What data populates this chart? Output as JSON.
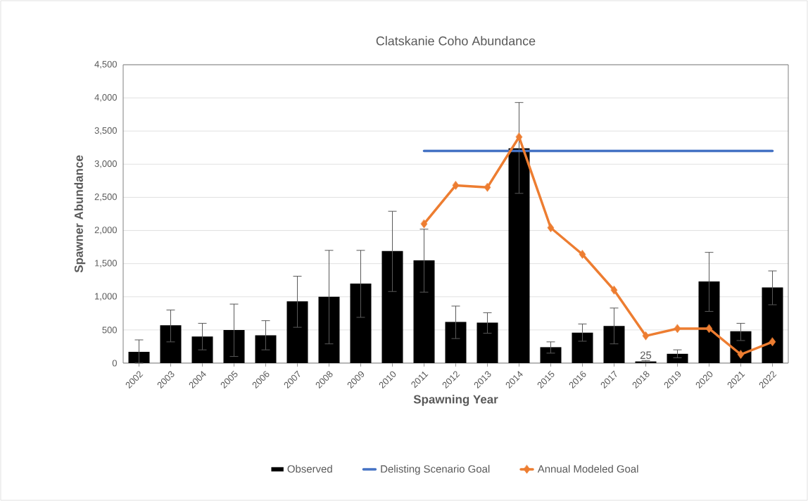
{
  "chart_data": {
    "type": "bar",
    "title": "Clatskanie Coho Abundance",
    "xlabel": "Spawning Year",
    "ylabel": "Spawner Abundance",
    "categories": [
      "2002",
      "2003",
      "2004",
      "2005",
      "2006",
      "2007",
      "2008",
      "2009",
      "2010",
      "2011",
      "2012",
      "2013",
      "2014",
      "2015",
      "2016",
      "2017",
      "2018",
      "2019",
      "2020",
      "2021",
      "2022"
    ],
    "series": [
      {
        "name": "Observed",
        "color": "#000000",
        "values": [
          170,
          570,
          400,
          500,
          420,
          930,
          1000,
          1200,
          1690,
          1550,
          620,
          610,
          3240,
          240,
          460,
          560,
          25,
          140,
          1230,
          480,
          1140
        ],
        "errors": [
          [
            0,
            350
          ],
          [
            320,
            800
          ],
          [
            200,
            600
          ],
          [
            100,
            890
          ],
          [
            200,
            640
          ],
          [
            540,
            1310
          ],
          [
            290,
            1700
          ],
          [
            690,
            1700
          ],
          [
            1080,
            2290
          ],
          [
            1070,
            2020
          ],
          [
            370,
            860
          ],
          [
            450,
            760
          ],
          [
            2560,
            3930
          ],
          [
            150,
            320
          ],
          [
            330,
            590
          ],
          [
            290,
            830
          ],
          [
            20,
            40
          ],
          [
            80,
            200
          ],
          [
            780,
            1670
          ],
          [
            340,
            600
          ],
          [
            880,
            1390
          ]
        ],
        "value_labels": [
          null,
          null,
          null,
          null,
          null,
          null,
          null,
          null,
          null,
          null,
          null,
          null,
          null,
          null,
          null,
          null,
          "25",
          null,
          null,
          null,
          null
        ]
      },
      {
        "name": "Delisting Scenario Goal",
        "type": "line",
        "color": "#4472c4",
        "marker": "none",
        "values": [
          null,
          null,
          null,
          null,
          null,
          null,
          null,
          null,
          null,
          3200,
          3200,
          3200,
          3200,
          3200,
          3200,
          3200,
          3200,
          3200,
          3200,
          3200,
          3200
        ]
      },
      {
        "name": "Annual Modeled Goal",
        "type": "line",
        "color": "#ed7d31",
        "marker": "diamond",
        "values": [
          null,
          null,
          null,
          null,
          null,
          null,
          null,
          null,
          null,
          2100,
          2680,
          2650,
          3410,
          2040,
          1640,
          1100,
          410,
          520,
          520,
          130,
          320
        ]
      }
    ],
    "ylim": [
      0,
      4500
    ],
    "yticks": [
      0,
      {
        "value": 500,
        "label": "500"
      },
      {
        "value": 1000,
        "label": "1,000"
      },
      {
        "value": 1500,
        "label": "1,500"
      },
      {
        "value": 2000,
        "label": "2,000"
      },
      {
        "value": 2500,
        "label": "2,500"
      },
      {
        "value": 3000,
        "label": "3,000"
      },
      {
        "value": 3500,
        "label": "3,500"
      },
      {
        "value": 4000,
        "label": "4,000"
      },
      {
        "value": 4500,
        "label": "4,500"
      }
    ],
    "grid": "y",
    "legend": "bottom"
  }
}
